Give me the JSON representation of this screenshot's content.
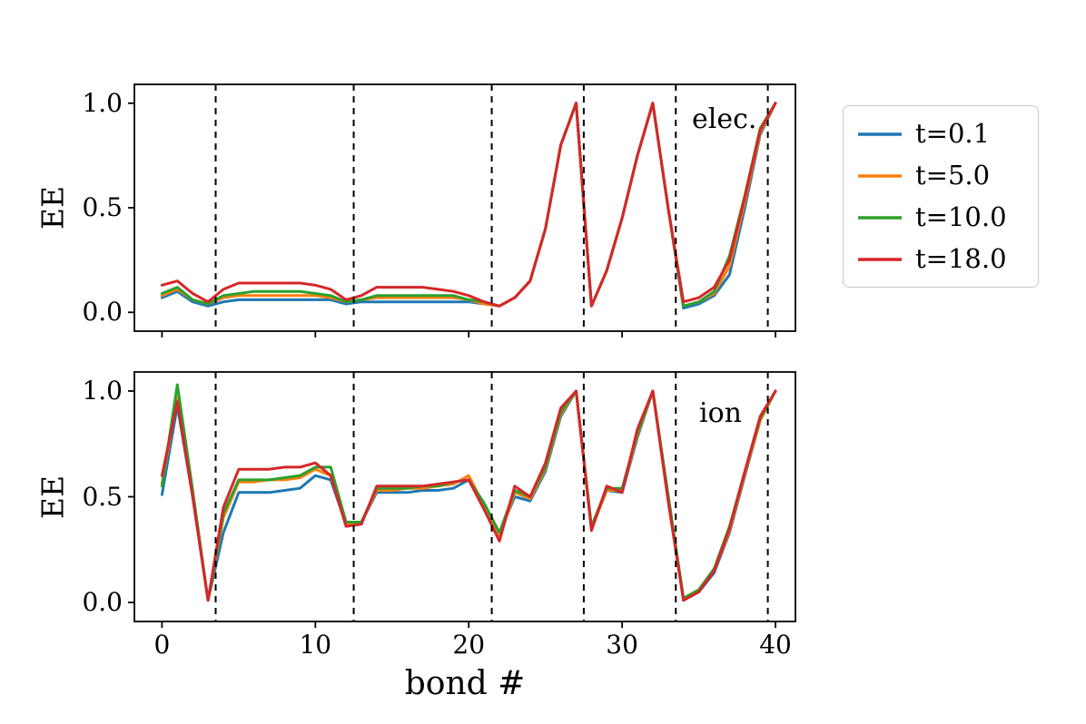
{
  "figure": {
    "background": "#ffffff"
  },
  "x_axis": {
    "label": "bond #",
    "tick_values": [
      0,
      10,
      20,
      30,
      40
    ],
    "tick_labels": [
      "0",
      "10",
      "20",
      "30",
      "40"
    ]
  },
  "legend": {
    "items": [
      {
        "label": "t=0.1",
        "color": "#1f77b4"
      },
      {
        "label": "t=5.0",
        "color": "#ff7f0e"
      },
      {
        "label": "t=10.0",
        "color": "#2ca02c"
      },
      {
        "label": "t=18.0",
        "color": "#d62728"
      }
    ]
  },
  "chart_data": [
    {
      "type": "line",
      "annotation": "elec.",
      "ylabel": "EE",
      "xlabel": "bond #",
      "xlim": [
        -1.8,
        41.3
      ],
      "ylim": [
        -0.09,
        1.09
      ],
      "grid": false,
      "vlines": [
        3.5,
        12.5,
        21.5,
        27.5,
        33.5,
        39.5
      ],
      "y_ticks": {
        "values": [
          0.0,
          0.5,
          1.0
        ],
        "labels": [
          "0.0",
          "0.5",
          "1.0"
        ]
      },
      "x": [
        0,
        1,
        2,
        3,
        4,
        5,
        6,
        7,
        8,
        9,
        10,
        11,
        12,
        13,
        14,
        15,
        16,
        17,
        18,
        19,
        20,
        21,
        22,
        23,
        24,
        25,
        26,
        27,
        28,
        29,
        30,
        31,
        32,
        33,
        34,
        35,
        36,
        37,
        38,
        39,
        40
      ],
      "series": [
        {
          "name": "t=0.1",
          "color": "#1f77b4",
          "values": [
            0.07,
            0.1,
            0.05,
            0.03,
            0.05,
            0.06,
            0.06,
            0.06,
            0.06,
            0.06,
            0.06,
            0.06,
            0.04,
            0.05,
            0.05,
            0.05,
            0.05,
            0.05,
            0.05,
            0.05,
            0.05,
            0.04,
            0.03,
            0.07,
            0.15,
            0.4,
            0.8,
            1.0,
            0.03,
            0.2,
            0.45,
            0.75,
            1.0,
            0.5,
            0.02,
            0.04,
            0.08,
            0.18,
            0.5,
            0.85,
            1.0
          ]
        },
        {
          "name": "t=5.0",
          "color": "#ff7f0e",
          "values": [
            0.08,
            0.11,
            0.06,
            0.04,
            0.07,
            0.08,
            0.08,
            0.08,
            0.08,
            0.08,
            0.08,
            0.07,
            0.05,
            0.06,
            0.07,
            0.07,
            0.07,
            0.07,
            0.07,
            0.07,
            0.06,
            0.04,
            0.03,
            0.07,
            0.15,
            0.4,
            0.8,
            1.0,
            0.03,
            0.2,
            0.45,
            0.75,
            1.0,
            0.5,
            0.03,
            0.05,
            0.09,
            0.22,
            0.53,
            0.86,
            1.0
          ]
        },
        {
          "name": "t=10.0",
          "color": "#2ca02c",
          "values": [
            0.09,
            0.12,
            0.06,
            0.04,
            0.08,
            0.09,
            0.1,
            0.1,
            0.1,
            0.1,
            0.09,
            0.08,
            0.05,
            0.06,
            0.08,
            0.08,
            0.08,
            0.08,
            0.08,
            0.08,
            0.06,
            0.05,
            0.03,
            0.07,
            0.15,
            0.4,
            0.8,
            1.0,
            0.03,
            0.2,
            0.45,
            0.75,
            1.0,
            0.5,
            0.03,
            0.05,
            0.1,
            0.27,
            0.56,
            0.88,
            1.0
          ]
        },
        {
          "name": "t=18.0",
          "color": "#d62728",
          "values": [
            0.13,
            0.15,
            0.09,
            0.05,
            0.11,
            0.14,
            0.14,
            0.14,
            0.14,
            0.14,
            0.13,
            0.11,
            0.06,
            0.08,
            0.12,
            0.12,
            0.12,
            0.12,
            0.11,
            0.1,
            0.08,
            0.05,
            0.03,
            0.07,
            0.15,
            0.4,
            0.8,
            1.0,
            0.03,
            0.2,
            0.45,
            0.75,
            1.0,
            0.5,
            0.05,
            0.07,
            0.12,
            0.25,
            0.55,
            0.87,
            1.0
          ]
        }
      ]
    },
    {
      "type": "line",
      "annotation": "ion",
      "ylabel": "EE",
      "xlabel": "bond #",
      "xlim": [
        -1.8,
        41.3
      ],
      "ylim": [
        -0.09,
        1.09
      ],
      "grid": false,
      "vlines": [
        3.5,
        12.5,
        21.5,
        27.5,
        33.5,
        39.5
      ],
      "y_ticks": {
        "values": [
          0.0,
          0.5,
          1.0
        ],
        "labels": [
          "0.0",
          "0.5",
          "1.0"
        ]
      },
      "x": [
        0,
        1,
        2,
        3,
        4,
        5,
        6,
        7,
        8,
        9,
        10,
        11,
        12,
        13,
        14,
        15,
        16,
        17,
        18,
        19,
        20,
        21,
        22,
        23,
        24,
        25,
        26,
        27,
        28,
        29,
        30,
        31,
        32,
        33,
        34,
        35,
        36,
        37,
        38,
        39,
        40
      ],
      "series": [
        {
          "name": "t=0.1",
          "color": "#1f77b4",
          "values": [
            0.51,
            0.93,
            0.5,
            0.01,
            0.33,
            0.52,
            0.52,
            0.52,
            0.53,
            0.54,
            0.6,
            0.58,
            0.37,
            0.38,
            0.52,
            0.52,
            0.52,
            0.53,
            0.53,
            0.54,
            0.58,
            0.45,
            0.33,
            0.5,
            0.48,
            0.62,
            0.88,
            1.0,
            0.35,
            0.53,
            0.52,
            0.78,
            1.0,
            0.5,
            0.01,
            0.05,
            0.14,
            0.33,
            0.6,
            0.86,
            1.0
          ]
        },
        {
          "name": "t=5.0",
          "color": "#ff7f0e",
          "values": [
            0.56,
            0.97,
            0.52,
            0.01,
            0.4,
            0.57,
            0.57,
            0.58,
            0.58,
            0.59,
            0.63,
            0.6,
            0.37,
            0.38,
            0.53,
            0.53,
            0.54,
            0.54,
            0.55,
            0.56,
            0.6,
            0.46,
            0.31,
            0.52,
            0.49,
            0.63,
            0.89,
            1.0,
            0.35,
            0.53,
            0.53,
            0.79,
            1.0,
            0.5,
            0.02,
            0.06,
            0.15,
            0.34,
            0.61,
            0.86,
            1.0
          ]
        },
        {
          "name": "t=10.0",
          "color": "#2ca02c",
          "values": [
            0.55,
            1.03,
            0.53,
            0.01,
            0.42,
            0.58,
            0.58,
            0.58,
            0.59,
            0.6,
            0.64,
            0.64,
            0.38,
            0.38,
            0.54,
            0.54,
            0.54,
            0.55,
            0.55,
            0.57,
            0.58,
            0.47,
            0.33,
            0.53,
            0.5,
            0.64,
            0.9,
            1.0,
            0.36,
            0.54,
            0.54,
            0.8,
            1.0,
            0.51,
            0.02,
            0.06,
            0.16,
            0.36,
            0.62,
            0.87,
            1.0
          ]
        },
        {
          "name": "t=18.0",
          "color": "#d62728",
          "values": [
            0.6,
            0.95,
            0.5,
            0.01,
            0.45,
            0.63,
            0.63,
            0.63,
            0.64,
            0.64,
            0.66,
            0.6,
            0.36,
            0.37,
            0.55,
            0.55,
            0.55,
            0.55,
            0.56,
            0.57,
            0.58,
            0.44,
            0.29,
            0.55,
            0.5,
            0.66,
            0.92,
            1.0,
            0.34,
            0.55,
            0.52,
            0.82,
            1.0,
            0.48,
            0.01,
            0.05,
            0.15,
            0.35,
            0.62,
            0.88,
            1.0
          ]
        }
      ]
    }
  ]
}
